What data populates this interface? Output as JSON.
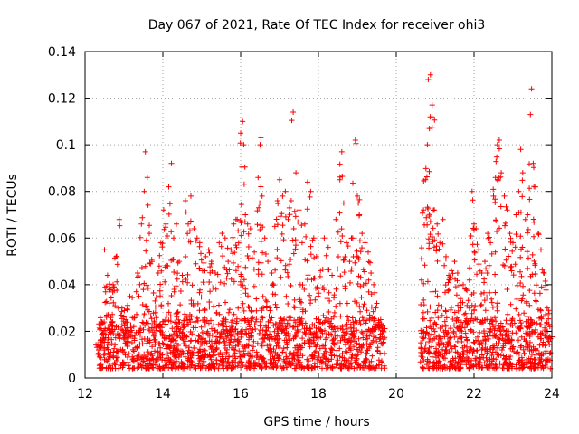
{
  "chart_data": {
    "type": "scatter",
    "title": "Day 067 of 2021, Rate Of TEC Index for receiver ohi3",
    "xlabel": "GPS time / hours",
    "ylabel": "ROTI / TECUs",
    "xlim": [
      12,
      24
    ],
    "ylim": [
      0,
      0.14
    ],
    "x_ticks": [
      12,
      14,
      16,
      18,
      20,
      22,
      24
    ],
    "x_tick_labels": [
      "12",
      "14",
      "16",
      "18",
      "20",
      "22",
      "24"
    ],
    "y_ticks": [
      0,
      0.02,
      0.04,
      0.06,
      0.08,
      0.1,
      0.12,
      0.14
    ],
    "y_tick_labels": [
      "0",
      "0.02",
      "0.04",
      "0.06",
      "0.08",
      "0.1",
      "0.12",
      "0.14"
    ],
    "grid": true,
    "marker": "+",
    "series_color": "#ff0000",
    "data_gap": [
      19.72,
      20.62
    ],
    "series": [
      {
        "name": "ROTI",
        "points": [
          [
            12.35,
            0.012
          ],
          [
            12.42,
            0.024
          ],
          [
            12.5,
            0.055
          ],
          [
            12.58,
            0.044
          ],
          [
            12.65,
            0.038
          ],
          [
            12.72,
            0.04
          ],
          [
            12.8,
            0.052
          ],
          [
            12.88,
            0.068
          ],
          [
            12.95,
            0.03
          ],
          [
            13.05,
            0.025
          ],
          [
            13.15,
            0.035
          ],
          [
            13.25,
            0.022
          ],
          [
            13.35,
            0.045
          ],
          [
            13.45,
            0.066
          ],
          [
            13.52,
            0.08
          ],
          [
            13.55,
            0.097
          ],
          [
            13.6,
            0.086
          ],
          [
            13.65,
            0.062
          ],
          [
            13.72,
            0.05
          ],
          [
            13.8,
            0.033
          ],
          [
            13.88,
            0.045
          ],
          [
            13.95,
            0.058
          ],
          [
            14.02,
            0.072
          ],
          [
            14.08,
            0.066
          ],
          [
            14.15,
            0.082
          ],
          [
            14.22,
            0.092
          ],
          [
            14.28,
            0.06
          ],
          [
            14.35,
            0.066
          ],
          [
            14.42,
            0.05
          ],
          [
            14.5,
            0.044
          ],
          [
            14.58,
            0.076
          ],
          [
            14.65,
            0.066
          ],
          [
            14.72,
            0.078
          ],
          [
            14.8,
            0.064
          ],
          [
            14.88,
            0.06
          ],
          [
            14.95,
            0.058
          ],
          [
            15.02,
            0.046
          ],
          [
            15.1,
            0.052
          ],
          [
            15.18,
            0.055
          ],
          [
            15.25,
            0.05
          ],
          [
            15.35,
            0.045
          ],
          [
            15.45,
            0.058
          ],
          [
            15.52,
            0.062
          ],
          [
            15.6,
            0.06
          ],
          [
            15.68,
            0.05
          ],
          [
            15.75,
            0.055
          ],
          [
            15.82,
            0.066
          ],
          [
            15.88,
            0.068
          ],
          [
            15.95,
            0.058
          ],
          [
            16.0,
            0.105
          ],
          [
            16.05,
            0.11
          ],
          [
            16.08,
            0.1
          ],
          [
            16.12,
            0.07
          ],
          [
            16.18,
            0.066
          ],
          [
            16.25,
            0.064
          ],
          [
            16.35,
            0.054
          ],
          [
            16.45,
            0.086
          ],
          [
            16.5,
            0.1
          ],
          [
            16.52,
            0.103
          ],
          [
            16.55,
            0.078
          ],
          [
            16.62,
            0.06
          ],
          [
            16.7,
            0.05
          ],
          [
            16.8,
            0.045
          ],
          [
            16.88,
            0.065
          ],
          [
            16.95,
            0.076
          ],
          [
            17.0,
            0.085
          ],
          [
            17.08,
            0.078
          ],
          [
            17.15,
            0.08
          ],
          [
            17.22,
            0.068
          ],
          [
            17.3,
            0.076
          ],
          [
            17.35,
            0.114
          ],
          [
            17.42,
            0.088
          ],
          [
            17.5,
            0.072
          ],
          [
            17.58,
            0.058
          ],
          [
            17.65,
            0.066
          ],
          [
            17.72,
            0.084
          ],
          [
            17.8,
            0.08
          ],
          [
            17.88,
            0.06
          ],
          [
            17.95,
            0.052
          ],
          [
            18.05,
            0.046
          ],
          [
            18.15,
            0.06
          ],
          [
            18.25,
            0.056
          ],
          [
            18.35,
            0.044
          ],
          [
            18.45,
            0.068
          ],
          [
            18.55,
            0.085
          ],
          [
            18.6,
            0.097
          ],
          [
            18.65,
            0.075
          ],
          [
            18.72,
            0.058
          ],
          [
            18.8,
            0.05
          ],
          [
            18.88,
            0.06
          ],
          [
            18.95,
            0.102
          ],
          [
            19.0,
            0.078
          ],
          [
            19.05,
            0.07
          ],
          [
            19.12,
            0.062
          ],
          [
            19.2,
            0.058
          ],
          [
            19.28,
            0.054
          ],
          [
            19.35,
            0.045
          ],
          [
            19.42,
            0.04
          ],
          [
            19.5,
            0.032
          ],
          [
            19.6,
            0.025
          ],
          [
            20.65,
            0.042
          ],
          [
            20.7,
            0.072
          ],
          [
            20.75,
            0.085
          ],
          [
            20.8,
            0.1
          ],
          [
            20.85,
            0.107
          ],
          [
            20.88,
            0.13
          ],
          [
            20.92,
            0.112
          ],
          [
            20.98,
            0.072
          ],
          [
            21.05,
            0.066
          ],
          [
            21.12,
            0.058
          ],
          [
            21.2,
            0.068
          ],
          [
            21.28,
            0.052
          ],
          [
            21.35,
            0.044
          ],
          [
            21.42,
            0.046
          ],
          [
            21.5,
            0.05
          ],
          [
            21.58,
            0.045
          ],
          [
            21.65,
            0.034
          ],
          [
            21.72,
            0.04
          ],
          [
            21.8,
            0.038
          ],
          [
            21.88,
            0.042
          ],
          [
            21.95,
            0.08
          ],
          [
            22.0,
            0.066
          ],
          [
            22.05,
            0.064
          ],
          [
            22.12,
            0.055
          ],
          [
            22.2,
            0.045
          ],
          [
            22.28,
            0.05
          ],
          [
            22.35,
            0.062
          ],
          [
            22.42,
            0.058
          ],
          [
            22.5,
            0.078
          ],
          [
            22.55,
            0.086
          ],
          [
            22.6,
            0.1
          ],
          [
            22.65,
            0.102
          ],
          [
            22.7,
            0.088
          ],
          [
            22.78,
            0.078
          ],
          [
            22.85,
            0.072
          ],
          [
            22.92,
            0.062
          ],
          [
            23.0,
            0.058
          ],
          [
            23.08,
            0.07
          ],
          [
            23.15,
            0.08
          ],
          [
            23.2,
            0.098
          ],
          [
            23.25,
            0.088
          ],
          [
            23.32,
            0.068
          ],
          [
            23.38,
            0.07
          ],
          [
            23.45,
            0.113
          ],
          [
            23.48,
            0.124
          ],
          [
            23.52,
            0.092
          ],
          [
            23.58,
            0.082
          ],
          [
            23.65,
            0.062
          ],
          [
            23.72,
            0.055
          ],
          [
            23.8,
            0.045
          ],
          [
            23.88,
            0.03
          ],
          [
            23.95,
            0.022
          ]
        ]
      }
    ]
  }
}
